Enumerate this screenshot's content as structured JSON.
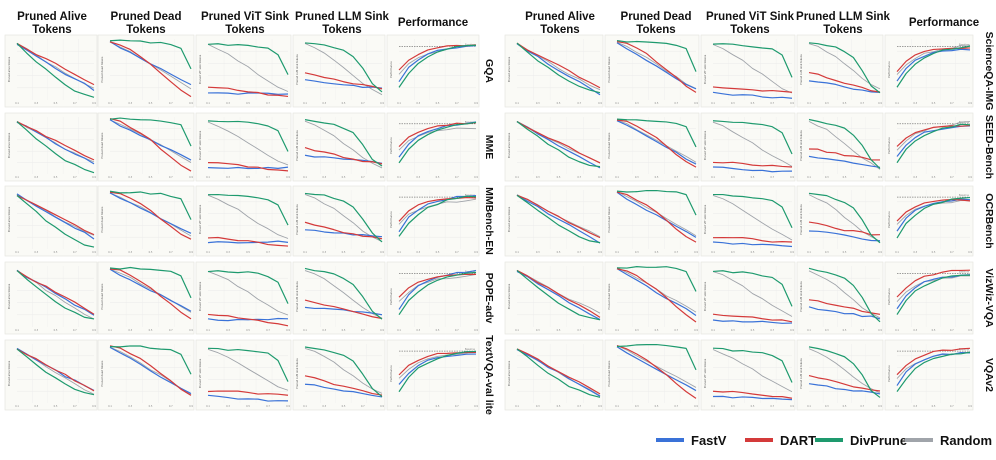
{
  "chart_data": {
    "type": "line",
    "column_headers": [
      "Pruned Alive\nTokens",
      "Pruned Dead\nTokens",
      "Pruned ViT Sink\nTokens",
      "Pruned LLM Sink\nTokens",
      "Performance"
    ],
    "left_rows": [
      "GQA",
      "MME",
      "MMBench-EN",
      "POPE-adv",
      "TextVQA-val lite"
    ],
    "right_rows": [
      "ScienceQA-IMG",
      "SEED-Bench",
      "OCRBench",
      "VizWiz-VQA",
      "VQAv2"
    ],
    "legend": [
      {
        "name": "FastV",
        "color": "#3a72d8"
      },
      {
        "name": "DART",
        "color": "#d43a3a"
      },
      {
        "name": "DivPrune",
        "color": "#1e9a6e"
      },
      {
        "name": "Random",
        "color": "#a0a4aa"
      }
    ],
    "x": [
      0.1,
      0.2,
      0.3,
      0.4,
      0.5,
      0.6,
      0.7,
      0.8,
      0.9
    ],
    "ylim": [
      0,
      1
    ],
    "panels": {
      "alive": {
        "FastV": [
          0.92,
          0.82,
          0.72,
          0.62,
          0.52,
          0.42,
          0.33,
          0.24,
          0.14
        ],
        "DART": [
          0.92,
          0.83,
          0.74,
          0.65,
          0.56,
          0.47,
          0.38,
          0.29,
          0.2
        ],
        "DivPrune": [
          0.92,
          0.78,
          0.64,
          0.51,
          0.39,
          0.28,
          0.19,
          0.12,
          0.08
        ],
        "Random": [
          0.93,
          0.83,
          0.73,
          0.63,
          0.53,
          0.43,
          0.34,
          0.26,
          0.18
        ]
      },
      "dead": {
        "FastV": [
          0.95,
          0.85,
          0.76,
          0.67,
          0.58,
          0.49,
          0.4,
          0.31,
          0.22
        ],
        "DART": [
          0.96,
          0.92,
          0.84,
          0.74,
          0.62,
          0.48,
          0.34,
          0.2,
          0.1
        ],
        "DivPrune": [
          0.97,
          0.97,
          0.97,
          0.97,
          0.96,
          0.95,
          0.93,
          0.88,
          0.52
        ],
        "Random": [
          0.96,
          0.88,
          0.79,
          0.7,
          0.6,
          0.5,
          0.4,
          0.3,
          0.2
        ]
      },
      "vit": {
        "FastV": [
          0.12,
          0.11,
          0.1,
          0.1,
          0.09,
          0.09,
          0.08,
          0.08,
          0.08
        ],
        "DART": [
          0.2,
          0.2,
          0.19,
          0.17,
          0.15,
          0.13,
          0.11,
          0.09,
          0.08
        ],
        "DivPrune": [
          0.92,
          0.92,
          0.91,
          0.91,
          0.9,
          0.88,
          0.85,
          0.75,
          0.4
        ],
        "Random": [
          0.9,
          0.84,
          0.76,
          0.66,
          0.55,
          0.44,
          0.34,
          0.24,
          0.16
        ]
      },
      "llm": {
        "FastV": [
          0.32,
          0.3,
          0.28,
          0.26,
          0.24,
          0.22,
          0.2,
          0.18,
          0.16
        ],
        "DART": [
          0.45,
          0.42,
          0.38,
          0.34,
          0.3,
          0.27,
          0.24,
          0.21,
          0.18
        ],
        "DivPrune": [
          0.95,
          0.93,
          0.9,
          0.86,
          0.8,
          0.7,
          0.5,
          0.25,
          0.12
        ],
        "Random": [
          0.92,
          0.86,
          0.78,
          0.68,
          0.56,
          0.44,
          0.32,
          0.22,
          0.14
        ]
      },
      "perf": {
        "FastV": [
          0.3,
          0.52,
          0.66,
          0.74,
          0.79,
          0.82,
          0.84,
          0.86,
          0.87
        ],
        "DART": [
          0.48,
          0.64,
          0.74,
          0.8,
          0.84,
          0.86,
          0.87,
          0.88,
          0.88
        ],
        "DivPrune": [
          0.2,
          0.42,
          0.58,
          0.68,
          0.75,
          0.8,
          0.83,
          0.85,
          0.86
        ],
        "Random": [
          0.42,
          0.58,
          0.68,
          0.74,
          0.78,
          0.81,
          0.83,
          0.85,
          0.86
        ],
        "baseline": 0.88
      }
    },
    "panel_ylabels": [
      "Pruned alive tokens",
      "Pruned dead tokens",
      "Pruned ViT sink tokens",
      "Pruned LLM sink tokens",
      "Performance"
    ],
    "x_tick_labels": [
      "0.1",
      "0.3",
      "0.5",
      "0.7",
      "0.9"
    ],
    "baseline_label": "Baseline",
    "grid": true,
    "legend_placement": "bottom-right"
  }
}
